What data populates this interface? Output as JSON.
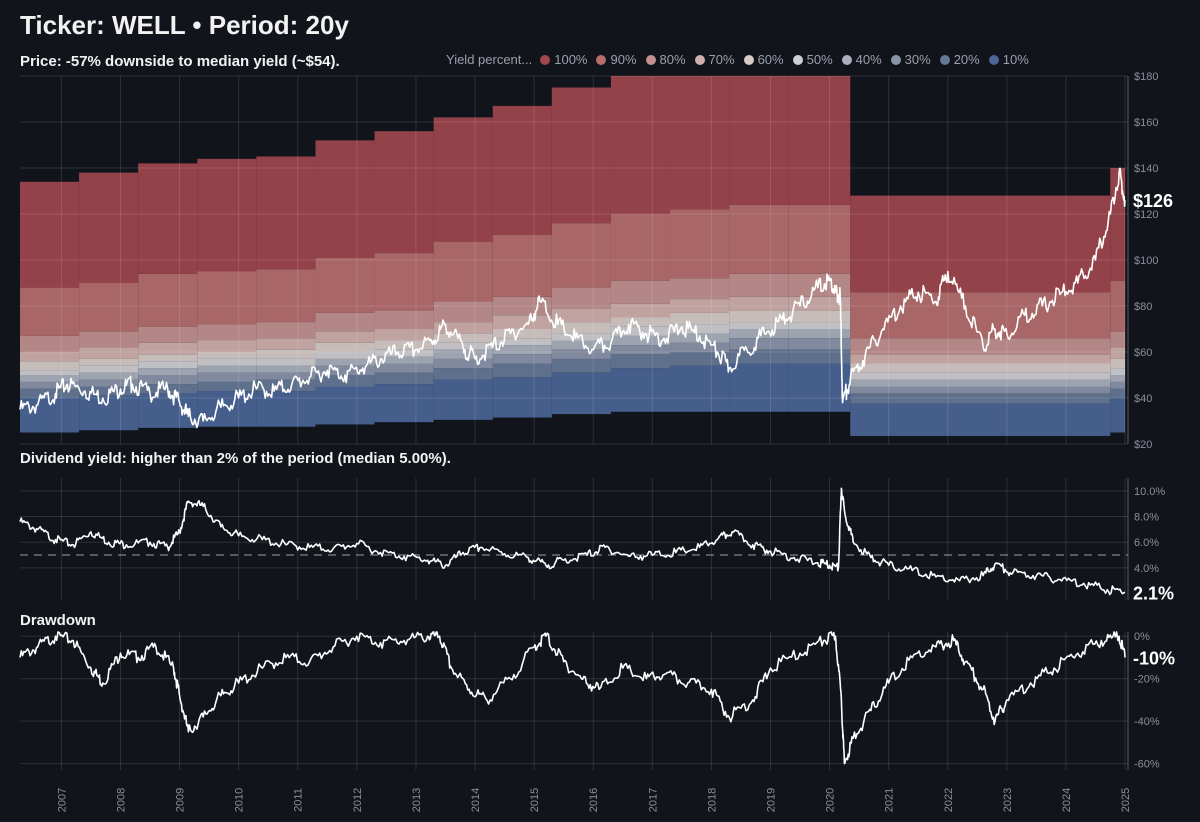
{
  "header": {
    "title": "Ticker: WELL • Period: 20y",
    "subtitle": "Price: -57% downside to median yield (~$54)."
  },
  "legend": {
    "title": "Yield percent...",
    "items": [
      {
        "label": "100%",
        "color": "#a0474d"
      },
      {
        "label": "90%",
        "color": "#b56e6c"
      },
      {
        "label": "80%",
        "color": "#c29190"
      },
      {
        "label": "70%",
        "color": "#cfb0ac"
      },
      {
        "label": "60%",
        "color": "#d6cbc8"
      },
      {
        "label": "50%",
        "color": "#cfcfd3"
      },
      {
        "label": "40%",
        "color": "#aab0bd"
      },
      {
        "label": "30%",
        "color": "#8a94a9"
      },
      {
        "label": "20%",
        "color": "#667896"
      },
      {
        "label": "10%",
        "color": "#4a6596"
      }
    ]
  },
  "panels": {
    "yield_label": "Dividend yield: higher than 2% of the period (median 5.00%).",
    "drawdown_label": "Drawdown"
  },
  "chart_data": [
    {
      "type": "area",
      "name": "price",
      "title": "Price with dividend-yield percentile bands",
      "ylim": [
        20,
        180
      ],
      "ytick_labels": [
        "$20",
        "$40",
        "$60",
        "$80",
        "$100",
        "$120",
        "$140",
        "$160",
        "$180"
      ],
      "ytick_values": [
        20,
        40,
        60,
        80,
        100,
        120,
        140,
        160,
        180
      ],
      "last_value_label": "$126",
      "band_colors": [
        "#4a6596",
        "#667896",
        "#8a94a9",
        "#aab0bd",
        "#cfcfd3",
        "#d6cbc8",
        "#cfb0ac",
        "#c29190",
        "#b56e6c",
        "#a0474d"
      ],
      "band_boundaries": {
        "comment": "quantile boundaries: bottom(min), 10%,20%,...,90%, top(100%) for each dividend regime",
        "years": [
          2006.3,
          2007.3,
          2008.3,
          2009.3,
          2010.3,
          2011.3,
          2012.3,
          2013.3,
          2014.3,
          2015.3,
          2016.3,
          2017.3,
          2018.3,
          2019.3,
          2020.35,
          2024.75,
          2025.0
        ],
        "bottom": [
          25,
          26,
          27,
          27.5,
          27.5,
          28.5,
          29.5,
          30.5,
          31.5,
          33,
          34,
          34,
          34,
          34,
          23.5,
          25,
          25
        ],
        "p10": [
          40,
          41,
          42,
          43,
          43,
          45,
          46,
          48,
          49,
          51,
          53,
          54,
          55,
          55,
          37.5,
          40,
          40
        ],
        "p20": [
          44,
          45,
          46,
          47,
          48,
          50,
          51,
          53,
          55,
          57,
          59,
          60,
          61,
          61,
          42,
          44,
          44
        ],
        "p30": [
          47,
          48,
          50,
          51,
          51,
          54,
          55,
          57,
          59,
          61,
          63,
          64,
          66,
          66,
          45,
          47,
          47
        ],
        "p40": [
          50,
          51,
          53,
          54,
          54,
          57,
          58,
          61,
          63,
          65,
          67,
          68,
          70,
          70,
          48,
          50,
          50
        ],
        "p50": [
          52,
          54,
          56,
          57,
          57,
          60,
          61,
          64,
          66,
          68,
          71,
          72,
          73,
          73,
          51,
          53,
          53
        ],
        "p60": [
          56,
          57,
          59,
          60,
          61,
          64,
          65,
          68,
          70,
          73,
          75,
          77,
          78,
          78,
          55,
          57,
          57
        ],
        "p70": [
          60,
          62,
          64,
          65,
          66,
          69,
          70,
          73,
          76,
          79,
          81,
          83,
          84,
          84,
          59,
          62,
          62
        ],
        "p80": [
          67,
          69,
          71,
          72,
          73,
          77,
          78,
          82,
          84,
          88,
          91,
          92,
          94,
          94,
          66,
          69,
          69
        ],
        "p90": [
          88,
          90,
          94,
          95,
          96,
          101,
          103,
          108,
          111,
          116,
          120,
          122,
          124,
          124,
          86,
          91,
          91
        ],
        "top": [
          134,
          138,
          142,
          144,
          145,
          152,
          156,
          162,
          167,
          175,
          180,
          180,
          180,
          180,
          128,
          140,
          140
        ]
      },
      "series": {
        "name": "WELL price",
        "x": [
          2006.3,
          2006.6,
          2006.9,
          2007.1,
          2007.4,
          2007.7,
          2008.0,
          2008.2,
          2008.5,
          2008.8,
          2009.0,
          2009.15,
          2009.4,
          2009.7,
          2010.0,
          2010.3,
          2010.6,
          2010.9,
          2011.2,
          2011.5,
          2011.8,
          2012.1,
          2012.4,
          2012.7,
          2013.0,
          2013.3,
          2013.5,
          2013.8,
          2014.0,
          2014.3,
          2014.6,
          2014.9,
          2015.1,
          2015.4,
          2015.7,
          2016.0,
          2016.3,
          2016.6,
          2016.9,
          2017.2,
          2017.5,
          2017.8,
          2018.1,
          2018.3,
          2018.6,
          2018.9,
          2019.2,
          2019.5,
          2019.8,
          2020.0,
          2020.1,
          2020.18,
          2020.22,
          2020.35,
          2020.6,
          2020.9,
          2021.2,
          2021.5,
          2021.8,
          2022.0,
          2022.3,
          2022.6,
          2022.8,
          2023.0,
          2023.3,
          2023.6,
          2023.9,
          2024.2,
          2024.5,
          2024.75,
          2024.9,
          2025.0
        ],
        "y": [
          35,
          37,
          42,
          46,
          43,
          40,
          44,
          46,
          42,
          44,
          38,
          32,
          30,
          36,
          40,
          44,
          43,
          46,
          49,
          52,
          50,
          53,
          57,
          60,
          61,
          65,
          72,
          62,
          57,
          62,
          68,
          72,
          82,
          72,
          66,
          61,
          64,
          72,
          68,
          66,
          71,
          67,
          60,
          53,
          61,
          68,
          74,
          80,
          88,
          91,
          86,
          84,
          38,
          48,
          58,
          70,
          80,
          86,
          82,
          95,
          80,
          62,
          70,
          68,
          76,
          80,
          85,
          90,
          100,
          120,
          138,
          126
        ]
      }
    },
    {
      "type": "line",
      "name": "dividend_yield",
      "title": "Dividend yield",
      "ylim": [
        1.5,
        11
      ],
      "ytick_labels": [
        "4.0%",
        "6.0%",
        "8.0%",
        "10.0%"
      ],
      "ytick_values": [
        4,
        6,
        8,
        10
      ],
      "median": 5.0,
      "last_value_label": "2.1%",
      "series": {
        "name": "yield",
        "x": [
          2006.3,
          2006.6,
          2006.9,
          2007.2,
          2007.5,
          2007.8,
          2008.1,
          2008.5,
          2008.8,
          2009.0,
          2009.15,
          2009.4,
          2009.7,
          2010.0,
          2010.4,
          2010.8,
          2011.2,
          2011.6,
          2012.0,
          2012.4,
          2012.8,
          2013.2,
          2013.5,
          2013.8,
          2014.1,
          2014.5,
          2014.9,
          2015.2,
          2015.5,
          2015.9,
          2016.2,
          2016.6,
          2017.0,
          2017.4,
          2017.8,
          2018.1,
          2018.35,
          2018.7,
          2019.0,
          2019.4,
          2019.8,
          2020.0,
          2020.15,
          2020.2,
          2020.25,
          2020.4,
          2020.7,
          2021.0,
          2021.4,
          2021.8,
          2022.2,
          2022.6,
          2022.8,
          2023.1,
          2023.5,
          2023.9,
          2024.3,
          2024.7,
          2025.0
        ],
        "y": [
          7.6,
          7.0,
          6.2,
          5.8,
          6.8,
          6.0,
          5.8,
          6.0,
          5.6,
          6.8,
          9.2,
          8.8,
          7.2,
          6.5,
          6.2,
          5.8,
          5.6,
          5.5,
          5.9,
          5.2,
          4.9,
          4.6,
          4.2,
          5.2,
          5.6,
          5.1,
          4.8,
          4.2,
          4.6,
          5.0,
          5.6,
          4.9,
          5.0,
          5.2,
          5.6,
          6.2,
          6.8,
          5.8,
          5.3,
          4.8,
          4.4,
          4.2,
          4.0,
          10.2,
          8.5,
          6.0,
          4.8,
          4.2,
          3.8,
          3.3,
          3.0,
          3.4,
          4.3,
          3.6,
          3.4,
          3.1,
          2.8,
          2.3,
          2.1
        ]
      }
    },
    {
      "type": "line",
      "name": "drawdown",
      "title": "Drawdown",
      "ylim": [
        -63,
        2
      ],
      "ytick_labels": [
        "0%",
        "-20%",
        "-40%",
        "-60%"
      ],
      "ytick_values": [
        0,
        -20,
        -40,
        -60
      ],
      "last_value_label": "-10%",
      "series": {
        "name": "drawdown",
        "x": [
          2006.3,
          2006.6,
          2006.9,
          2007.2,
          2007.5,
          2007.7,
          2008.0,
          2008.3,
          2008.6,
          2008.9,
          2009.0,
          2009.15,
          2009.4,
          2009.7,
          2010.0,
          2010.4,
          2010.8,
          2011.2,
          2011.6,
          2012.0,
          2012.4,
          2012.8,
          2013.2,
          2013.4,
          2013.6,
          2013.9,
          2014.2,
          2014.6,
          2015.0,
          2015.2,
          2015.5,
          2015.8,
          2016.1,
          2016.5,
          2016.9,
          2017.2,
          2017.6,
          2018.0,
          2018.3,
          2018.7,
          2019.0,
          2019.5,
          2019.9,
          2020.1,
          2020.2,
          2020.25,
          2020.4,
          2020.7,
          2021.0,
          2021.4,
          2021.8,
          2022.1,
          2022.3,
          2022.6,
          2022.8,
          2023.0,
          2023.4,
          2023.8,
          2024.2,
          2024.6,
          2024.9,
          2025.0
        ],
        "y": [
          -10,
          -5,
          0,
          -2,
          -15,
          -22,
          -8,
          -10,
          -5,
          -15,
          -28,
          -45,
          -38,
          -28,
          -22,
          -15,
          -10,
          -12,
          -5,
          0,
          -3,
          -2,
          0,
          0,
          -15,
          -25,
          -30,
          -20,
          -5,
          0,
          -12,
          -20,
          -25,
          -15,
          -20,
          -18,
          -22,
          -25,
          -38,
          -30,
          -15,
          -8,
          -2,
          0,
          -30,
          -60,
          -48,
          -35,
          -22,
          -10,
          -5,
          -2,
          -12,
          -25,
          -40,
          -30,
          -22,
          -15,
          -8,
          -2,
          0,
          -10
        ]
      }
    }
  ],
  "xaxis": {
    "xlim": [
      2006.3,
      2025.05
    ],
    "tick_labels": [
      "2007",
      "2008",
      "2009",
      "2010",
      "2011",
      "2012",
      "2013",
      "2014",
      "2015",
      "2016",
      "2017",
      "2018",
      "2019",
      "2020",
      "2021",
      "2022",
      "2023",
      "2024",
      "2025"
    ]
  }
}
